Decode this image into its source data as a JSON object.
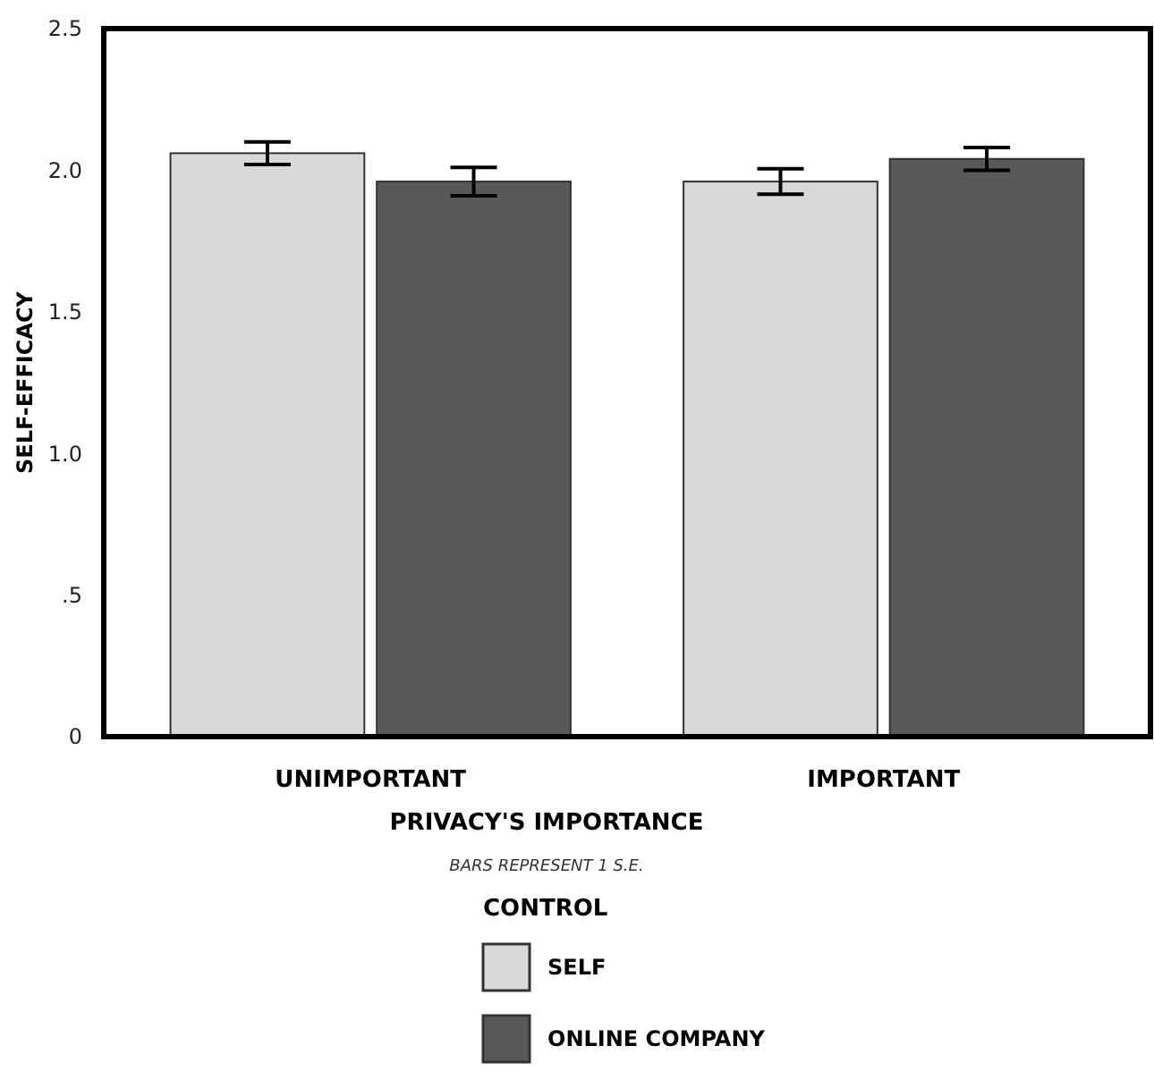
{
  "chart_data": {
    "type": "bar",
    "xlabel": "PRIVACY'S IMPORTANCE",
    "ylabel": "SELF-EFFICACY",
    "legend_title": "CONTROL",
    "annotations": [
      "BARS REPRESENT 1 S.E."
    ],
    "categories": [
      "UNIMPORTANT",
      "IMPORTANT"
    ],
    "series": [
      {
        "name": "SELF",
        "color": "#d9d9d9",
        "values": [
          2.06,
          1.96
        ],
        "errors": [
          0.04,
          0.045
        ]
      },
      {
        "name": "ONLINE COMPANY",
        "color": "#595959",
        "values": [
          1.96,
          2.04
        ],
        "errors": [
          0.05,
          0.04
        ]
      }
    ],
    "ylim": [
      0,
      2.5
    ],
    "yticks": [
      0,
      {
        "value": 0.5,
        "label": ".5"
      },
      {
        "value": 1,
        "label": "1.0"
      },
      {
        "value": 1.5,
        "label": "1.5"
      },
      {
        "value": 2,
        "label": "2.0"
      },
      2.5
    ],
    "legend": "bottom"
  }
}
